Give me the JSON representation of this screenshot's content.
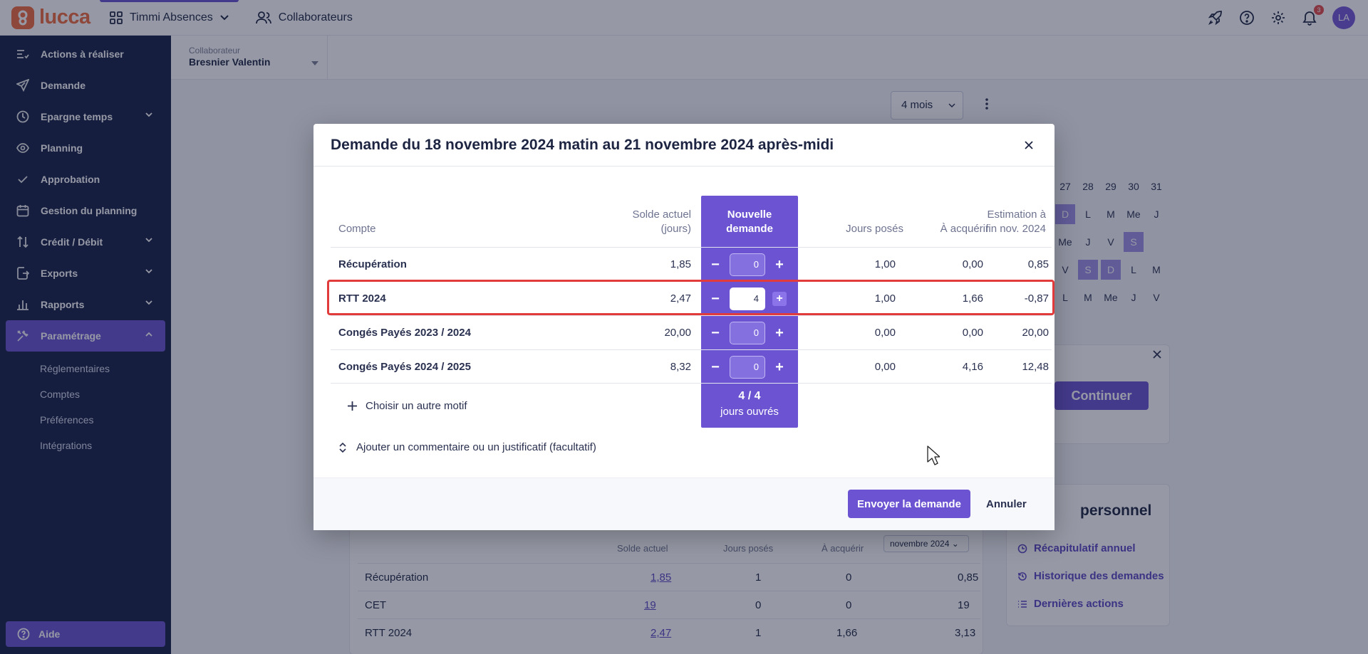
{
  "topbar": {
    "logo": "lucca",
    "app_name": "Timmi Absences",
    "collaborators_link": "Collaborateurs",
    "notification_count": "3",
    "avatar_initials": "LA"
  },
  "sidebar": {
    "items": [
      {
        "label": "Actions à réaliser",
        "icon": "tasks-icon"
      },
      {
        "label": "Demande",
        "icon": "send-icon"
      },
      {
        "label": "Epargne temps",
        "icon": "clock-icon"
      },
      {
        "label": "Planning",
        "icon": "eye-icon"
      },
      {
        "label": "Approbation",
        "icon": "check-icon"
      },
      {
        "label": "Gestion du planning",
        "icon": "calendar-icon"
      },
      {
        "label": "Crédit / Débit",
        "icon": "sort-icon"
      },
      {
        "label": "Exports",
        "icon": "export-icon"
      },
      {
        "label": "Rapports",
        "icon": "chart-icon"
      },
      {
        "label": "Paramétrage",
        "icon": "tools-icon"
      }
    ],
    "subitems": [
      "Réglementaires",
      "Comptes",
      "Préférences",
      "Intégrations"
    ],
    "help": "Aide"
  },
  "page": {
    "collab_label": "Collaborateur",
    "collab_value": "Bresnier Valentin",
    "period": "4 mois",
    "calendar_days": [
      "27",
      "28",
      "29",
      "30",
      "31"
    ],
    "calendar_rows": [
      [
        "D",
        "L",
        "M",
        "Me",
        "J"
      ],
      [
        "Me",
        "J",
        "V",
        "S",
        ""
      ],
      [
        "V",
        "S",
        "D",
        "L",
        "M"
      ],
      [
        "L",
        "M",
        "Me",
        "J",
        "V"
      ]
    ],
    "continue_label": "Continuer",
    "perso_title": "personnel",
    "perso_links": [
      "Récapitulatif annuel",
      "Historique des demandes",
      "Dernières actions"
    ],
    "table": {
      "headers": [
        "Solde actuel",
        "Jours posés",
        "À acquérir"
      ],
      "month": "novembre 2024",
      "rows": [
        {
          "name": "Récupération",
          "solde": "1,85",
          "poses": "1",
          "acquerir": "0",
          "fin": "0,85"
        },
        {
          "name": "CET",
          "solde": "19",
          "poses": "0",
          "acquerir": "0",
          "fin": "19"
        },
        {
          "name": "RTT 2024",
          "solde": "2,47",
          "poses": "1",
          "acquerir": "1,66",
          "fin": "3,13"
        }
      ]
    }
  },
  "modal": {
    "title": "Demande du 18 novembre 2024 matin au 21 novembre 2024 après-midi",
    "headers": {
      "compte": "Compte",
      "solde_l1": "Solde actuel",
      "solde_l2": "(jours)",
      "new_l1": "Nouvelle",
      "new_l2": "demande",
      "poses": "Jours posés",
      "acquerir": "À acquérir",
      "estim_l1": "Estimation à",
      "estim_l2": "fin nov. 2024"
    },
    "rows": [
      {
        "name": "Récupération",
        "solde": "1,85",
        "value": "0",
        "poses": "1,00",
        "acquerir": "0,00",
        "estim": "0,85"
      },
      {
        "name": "RTT 2024",
        "solde": "2,47",
        "value": "4",
        "poses": "1,00",
        "acquerir": "1,66",
        "estim": "-0,87"
      },
      {
        "name": "Congés Payés 2023 / 2024",
        "solde": "20,00",
        "value": "0",
        "poses": "0,00",
        "acquerir": "0,00",
        "estim": "20,00"
      },
      {
        "name": "Congés Payés 2024 / 2025",
        "solde": "8,32",
        "value": "0",
        "poses": "0,00",
        "acquerir": "4,16",
        "estim": "12,48"
      }
    ],
    "other_reason": "Choisir un autre motif",
    "total": "4 / 4",
    "total_unit": "jours ouvrés",
    "comment": "Ajouter un commentaire ou un justificatif (facultatif)",
    "send": "Envoyer la demande",
    "cancel": "Annuler"
  },
  "colors": {
    "accent": "#6b53d2",
    "sidebar_bg": "#151f45",
    "logo": "#f06a3e",
    "highlight": "#e23b3b"
  }
}
